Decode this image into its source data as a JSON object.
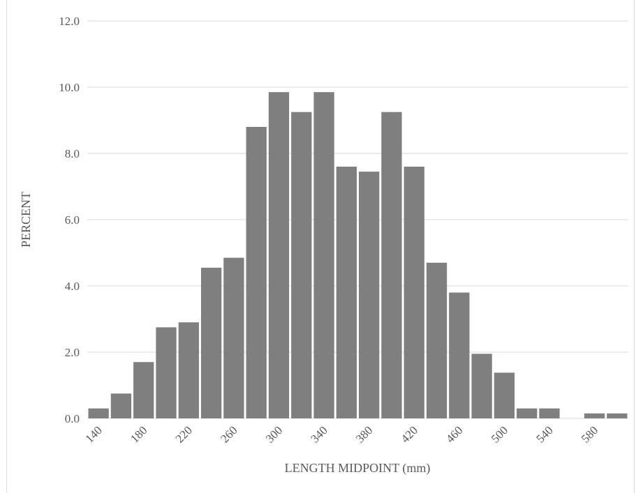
{
  "chart_data": {
    "type": "bar",
    "xlabel": "LENGTH MIDPOINT (mm)",
    "ylabel": "PERCENT",
    "ylim": [
      0,
      12
    ],
    "yticks": [
      "0.0",
      "2.0",
      "4.0",
      "6.0",
      "8.0",
      "10.0",
      "12.0"
    ],
    "categories": [
      140,
      160,
      180,
      200,
      220,
      240,
      260,
      280,
      300,
      320,
      340,
      360,
      380,
      400,
      420,
      440,
      460,
      480,
      500,
      520,
      540,
      560,
      580,
      600
    ],
    "xtick_labels": [
      "140",
      "180",
      "220",
      "260",
      "300",
      "340",
      "380",
      "420",
      "460",
      "500",
      "540",
      "580"
    ],
    "values": [
      0.3,
      0.75,
      1.7,
      2.75,
      2.9,
      4.55,
      4.85,
      8.8,
      9.85,
      9.25,
      9.85,
      7.6,
      7.45,
      9.25,
      7.6,
      4.7,
      3.8,
      1.95,
      1.38,
      0.3,
      0.3,
      0.0,
      0.15,
      0.15
    ],
    "grid": true,
    "colors": {
      "bar": "#7f7f7f",
      "grid": "#d9d9d9",
      "text": "#595959"
    }
  }
}
